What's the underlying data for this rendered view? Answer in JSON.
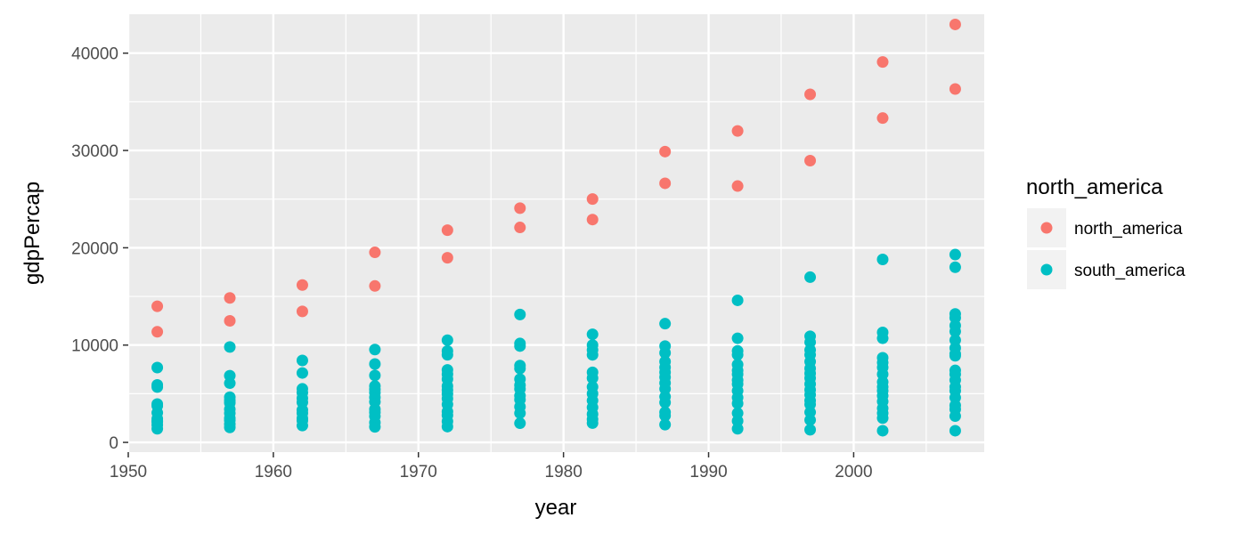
{
  "chart_data": {
    "type": "scatter",
    "xlabel": "year",
    "ylabel": "gdpPercap",
    "xlim": [
      1950,
      2009
    ],
    "ylim": [
      -1000,
      44000
    ],
    "x_ticks": [
      1950,
      1960,
      1970,
      1980,
      1990,
      2000
    ],
    "x_tick_labels": [
      "1950",
      "1960",
      "1970",
      "1980",
      "1990",
      "2000"
    ],
    "y_ticks": [
      0,
      10000,
      20000,
      30000,
      40000
    ],
    "y_tick_labels": [
      "0",
      "10000",
      "20000",
      "30000",
      "40000"
    ],
    "grid": true,
    "background": "#ebebeb",
    "legend": {
      "title": "north_america",
      "position": "right"
    },
    "series": [
      {
        "name": "north_america",
        "color": "#F8766D",
        "points": [
          [
            1952,
            11367
          ],
          [
            1952,
            13990
          ],
          [
            1957,
            12490
          ],
          [
            1957,
            14847
          ],
          [
            1962,
            13462
          ],
          [
            1962,
            16173
          ],
          [
            1967,
            16077
          ],
          [
            1967,
            19530
          ],
          [
            1972,
            18971
          ],
          [
            1972,
            21806
          ],
          [
            1977,
            22091
          ],
          [
            1977,
            24073
          ],
          [
            1982,
            22899
          ],
          [
            1982,
            25010
          ],
          [
            1987,
            26627
          ],
          [
            1987,
            29884
          ],
          [
            1992,
            26343
          ],
          [
            1992,
            32004
          ],
          [
            1997,
            28955
          ],
          [
            1997,
            35767
          ],
          [
            2002,
            33329
          ],
          [
            2002,
            39097
          ],
          [
            2007,
            36319
          ],
          [
            2007,
            42952
          ]
        ]
      },
      {
        "name": "south_america",
        "color": "#00BFC4",
        "points": [
          [
            1952,
            1398
          ],
          [
            1952,
            1786
          ],
          [
            1952,
            2108
          ],
          [
            1952,
            2177
          ],
          [
            1952,
            2429
          ],
          [
            1952,
            3048
          ],
          [
            1952,
            3759
          ],
          [
            1952,
            3940
          ],
          [
            1952,
            5691
          ],
          [
            1952,
            5911
          ],
          [
            1952,
            7690
          ],
          [
            1957,
            1540
          ],
          [
            1957,
            1868
          ],
          [
            1957,
            2260
          ],
          [
            1957,
            2487
          ],
          [
            1957,
            2990
          ],
          [
            1957,
            3400
          ],
          [
            1957,
            4058
          ],
          [
            1957,
            4315
          ],
          [
            1957,
            4647
          ],
          [
            1957,
            6085
          ],
          [
            1957,
            6857
          ],
          [
            1957,
            9802
          ],
          [
            1962,
            1727
          ],
          [
            1962,
            2245
          ],
          [
            1962,
            2480
          ],
          [
            1962,
            3000
          ],
          [
            1962,
            3336
          ],
          [
            1962,
            4110
          ],
          [
            1962,
            4537
          ],
          [
            1962,
            5108
          ],
          [
            1962,
            5501
          ],
          [
            1962,
            7133
          ],
          [
            1962,
            8422
          ],
          [
            1967,
            1598
          ],
          [
            1967,
            2032
          ],
          [
            1967,
            2677
          ],
          [
            1967,
            3082
          ],
          [
            1967,
            3400
          ],
          [
            1967,
            4162
          ],
          [
            1967,
            4625
          ],
          [
            1967,
            5100
          ],
          [
            1967,
            5445
          ],
          [
            1967,
            5788
          ],
          [
            1967,
            6881
          ],
          [
            1967,
            8052
          ],
          [
            1967,
            9541
          ],
          [
            1972,
            1622
          ],
          [
            1972,
            2154
          ],
          [
            1972,
            2790
          ],
          [
            1972,
            3163
          ],
          [
            1972,
            3900
          ],
          [
            1972,
            4500
          ],
          [
            1972,
            4985
          ],
          [
            1972,
            5385
          ],
          [
            1972,
            5780
          ],
          [
            1972,
            6500
          ],
          [
            1972,
            7003
          ],
          [
            1972,
            7450
          ],
          [
            1972,
            9000
          ],
          [
            1972,
            9397
          ],
          [
            1972,
            10505
          ],
          [
            1977,
            1969
          ],
          [
            1977,
            3005
          ],
          [
            1977,
            3669
          ],
          [
            1977,
            4400
          ],
          [
            1977,
            4800
          ],
          [
            1977,
            5495
          ],
          [
            1977,
            5870
          ],
          [
            1977,
            6500
          ],
          [
            1977,
            7600
          ],
          [
            1977,
            7900
          ],
          [
            1977,
            9900
          ],
          [
            1977,
            10165
          ],
          [
            1977,
            13143
          ],
          [
            1982,
            1979
          ],
          [
            1982,
            2380
          ],
          [
            1982,
            2900
          ],
          [
            1982,
            3600
          ],
          [
            1982,
            4300
          ],
          [
            1982,
            5000
          ],
          [
            1982,
            5700
          ],
          [
            1982,
            6600
          ],
          [
            1982,
            7200
          ],
          [
            1982,
            8998
          ],
          [
            1982,
            9500
          ],
          [
            1982,
            10000
          ],
          [
            1982,
            11111
          ],
          [
            1987,
            1823
          ],
          [
            1987,
            2753
          ],
          [
            1987,
            3100
          ],
          [
            1987,
            4100
          ],
          [
            1987,
            4700
          ],
          [
            1987,
            5500
          ],
          [
            1987,
            6100
          ],
          [
            1987,
            6700
          ],
          [
            1987,
            7200
          ],
          [
            1987,
            7700
          ],
          [
            1987,
            8300
          ],
          [
            1987,
            9200
          ],
          [
            1987,
            9900
          ],
          [
            1987,
            12200
          ],
          [
            1992,
            1400
          ],
          [
            1992,
            2200
          ],
          [
            1992,
            3000
          ],
          [
            1992,
            4000
          ],
          [
            1992,
            4600
          ],
          [
            1992,
            5300
          ],
          [
            1992,
            6000
          ],
          [
            1992,
            6400
          ],
          [
            1992,
            7000
          ],
          [
            1992,
            7400
          ],
          [
            1992,
            8000
          ],
          [
            1992,
            9000
          ],
          [
            1992,
            9400
          ],
          [
            1992,
            10700
          ],
          [
            1992,
            14600
          ],
          [
            1997,
            1300
          ],
          [
            1997,
            2300
          ],
          [
            1997,
            3100
          ],
          [
            1997,
            3900
          ],
          [
            1997,
            4300
          ],
          [
            1997,
            4900
          ],
          [
            1997,
            5400
          ],
          [
            1997,
            6000
          ],
          [
            1997,
            6600
          ],
          [
            1997,
            7100
          ],
          [
            1997,
            7600
          ],
          [
            1997,
            8300
          ],
          [
            1997,
            9000
          ],
          [
            1997,
            9500
          ],
          [
            1997,
            10300
          ],
          [
            1997,
            10900
          ],
          [
            1997,
            16979
          ],
          [
            2002,
            1200
          ],
          [
            2002,
            2500
          ],
          [
            2002,
            3000
          ],
          [
            2002,
            3500
          ],
          [
            2002,
            4200
          ],
          [
            2002,
            4800
          ],
          [
            2002,
            5300
          ],
          [
            2002,
            5700
          ],
          [
            2002,
            6200
          ],
          [
            2002,
            7000
          ],
          [
            2002,
            7700
          ],
          [
            2002,
            8200
          ],
          [
            2002,
            8700
          ],
          [
            2002,
            10700
          ],
          [
            2002,
            11300
          ],
          [
            2002,
            18800
          ],
          [
            2007,
            1200
          ],
          [
            2007,
            2700
          ],
          [
            2007,
            3400
          ],
          [
            2007,
            3800
          ],
          [
            2007,
            4600
          ],
          [
            2007,
            5300
          ],
          [
            2007,
            5700
          ],
          [
            2007,
            6400
          ],
          [
            2007,
            7000
          ],
          [
            2007,
            7400
          ],
          [
            2007,
            8900
          ],
          [
            2007,
            9100
          ],
          [
            2007,
            9700
          ],
          [
            2007,
            10500
          ],
          [
            2007,
            11400
          ],
          [
            2007,
            12000
          ],
          [
            2007,
            12800
          ],
          [
            2007,
            13200
          ],
          [
            2007,
            18000
          ],
          [
            2007,
            19300
          ]
        ]
      }
    ]
  }
}
